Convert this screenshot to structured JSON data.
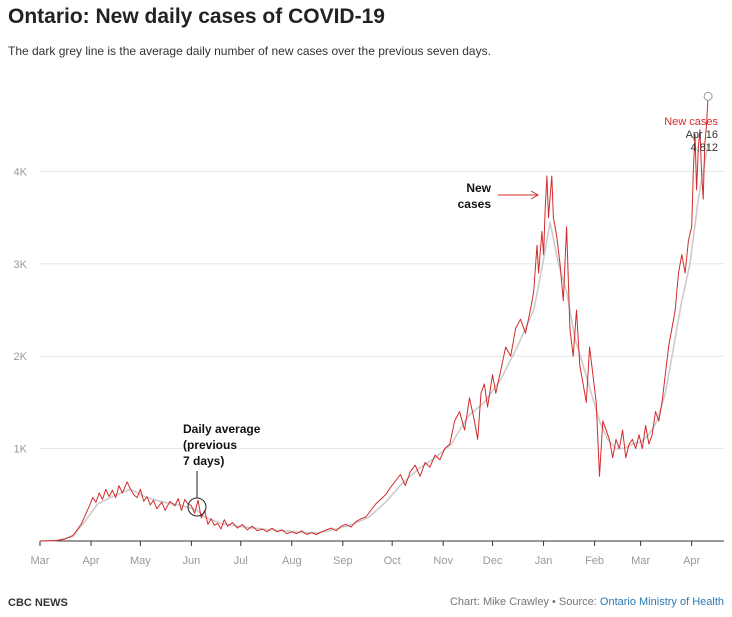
{
  "header": {
    "title": "Ontario: New daily cases of COVID-19",
    "subtitle": "The dark grey line is the average daily number of new cases over the previous seven days."
  },
  "footer": {
    "brand": "CBC NEWS",
    "credit": "Chart: Mike Crawley • Source: ",
    "source_link": "Ontario Ministry of Health"
  },
  "annotations": {
    "new_cases_line1": "New",
    "new_cases_line2": "cases",
    "avg_line1": "Daily average",
    "avg_line2": "(previous",
    "avg_line3": "7 days)",
    "last_series": "New cases",
    "last_date": "Apr 16",
    "last_value": "4,812"
  },
  "colors": {
    "daily": "#d32b2b",
    "average": "#cccccc",
    "grid": "#e6e6e6",
    "axis": "#333333"
  },
  "chart_data": {
    "type": "line",
    "title": "Ontario: New daily cases of COVID-19",
    "xlabel": "",
    "ylabel": "",
    "ylim": [
      0,
      5000
    ],
    "yticks": [
      1000,
      2000,
      3000,
      4000
    ],
    "ytick_labels": [
      "1K",
      "2K",
      "3K",
      "4K"
    ],
    "xticks": [
      "Mar",
      "Apr",
      "May",
      "Jun",
      "Jul",
      "Aug",
      "Sep",
      "Oct",
      "Nov",
      "Dec",
      "Jan",
      "Feb",
      "Mar",
      "Apr"
    ],
    "x_unit": "days since Mar 1, 2020",
    "xtick_days": [
      0,
      31,
      61,
      92,
      122,
      153,
      184,
      214,
      245,
      275,
      306,
      337,
      365,
      396
    ],
    "series": [
      {
        "name": "New cases",
        "points": [
          [
            0,
            0
          ],
          [
            10,
            5
          ],
          [
            15,
            20
          ],
          [
            20,
            60
          ],
          [
            25,
            180
          ],
          [
            28,
            300
          ],
          [
            30,
            380
          ],
          [
            32,
            470
          ],
          [
            34,
            420
          ],
          [
            36,
            520
          ],
          [
            38,
            450
          ],
          [
            40,
            560
          ],
          [
            42,
            480
          ],
          [
            44,
            550
          ],
          [
            46,
            470
          ],
          [
            48,
            600
          ],
          [
            50,
            520
          ],
          [
            53,
            640
          ],
          [
            55,
            560
          ],
          [
            57,
            500
          ],
          [
            59,
            470
          ],
          [
            61,
            560
          ],
          [
            63,
            430
          ],
          [
            65,
            480
          ],
          [
            67,
            390
          ],
          [
            69,
            440
          ],
          [
            71,
            350
          ],
          [
            74,
            420
          ],
          [
            76,
            330
          ],
          [
            79,
            430
          ],
          [
            82,
            380
          ],
          [
            84,
            460
          ],
          [
            86,
            330
          ],
          [
            88,
            450
          ],
          [
            90,
            400
          ],
          [
            92,
            380
          ],
          [
            94,
            300
          ],
          [
            96,
            440
          ],
          [
            98,
            250
          ],
          [
            100,
            330
          ],
          [
            102,
            180
          ],
          [
            104,
            240
          ],
          [
            106,
            170
          ],
          [
            108,
            190
          ],
          [
            110,
            130
          ],
          [
            112,
            230
          ],
          [
            114,
            160
          ],
          [
            117,
            200
          ],
          [
            120,
            140
          ],
          [
            123,
            180
          ],
          [
            126,
            120
          ],
          [
            129,
            160
          ],
          [
            132,
            110
          ],
          [
            135,
            130
          ],
          [
            138,
            100
          ],
          [
            141,
            140
          ],
          [
            144,
            100
          ],
          [
            147,
            120
          ],
          [
            150,
            80
          ],
          [
            153,
            100
          ],
          [
            156,
            80
          ],
          [
            159,
            110
          ],
          [
            162,
            70
          ],
          [
            165,
            90
          ],
          [
            168,
            70
          ],
          [
            171,
            100
          ],
          [
            174,
            120
          ],
          [
            177,
            140
          ],
          [
            180,
            110
          ],
          [
            183,
            160
          ],
          [
            186,
            180
          ],
          [
            189,
            150
          ],
          [
            192,
            210
          ],
          [
            195,
            240
          ],
          [
            198,
            260
          ],
          [
            201,
            330
          ],
          [
            204,
            400
          ],
          [
            207,
            450
          ],
          [
            210,
            500
          ],
          [
            213,
            580
          ],
          [
            216,
            650
          ],
          [
            219,
            720
          ],
          [
            222,
            600
          ],
          [
            225,
            750
          ],
          [
            228,
            820
          ],
          [
            231,
            700
          ],
          [
            234,
            850
          ],
          [
            237,
            800
          ],
          [
            240,
            930
          ],
          [
            243,
            880
          ],
          [
            246,
            1000
          ],
          [
            249,
            1050
          ],
          [
            252,
            1300
          ],
          [
            255,
            1400
          ],
          [
            258,
            1200
          ],
          [
            261,
            1550
          ],
          [
            264,
            1300
          ],
          [
            266,
            1100
          ],
          [
            268,
            1600
          ],
          [
            270,
            1700
          ],
          [
            272,
            1450
          ],
          [
            275,
            1800
          ],
          [
            277,
            1600
          ],
          [
            280,
            1850
          ],
          [
            283,
            2100
          ],
          [
            286,
            2000
          ],
          [
            289,
            2300
          ],
          [
            292,
            2400
          ],
          [
            295,
            2250
          ],
          [
            298,
            2500
          ],
          [
            300,
            2700
          ],
          [
            302,
            3200
          ],
          [
            303,
            2900
          ],
          [
            305,
            3350
          ],
          [
            306,
            3100
          ],
          [
            307,
            3600
          ],
          [
            308,
            3950
          ],
          [
            309,
            3500
          ],
          [
            311,
            3950
          ],
          [
            312,
            3500
          ],
          [
            314,
            3300
          ],
          [
            316,
            3000
          ],
          [
            318,
            2600
          ],
          [
            320,
            3400
          ],
          [
            322,
            2300
          ],
          [
            324,
            2000
          ],
          [
            326,
            2500
          ],
          [
            328,
            1900
          ],
          [
            330,
            1700
          ],
          [
            332,
            1500
          ],
          [
            334,
            2100
          ],
          [
            336,
            1800
          ],
          [
            338,
            1500
          ],
          [
            340,
            700
          ],
          [
            342,
            1300
          ],
          [
            344,
            1200
          ],
          [
            346,
            1100
          ],
          [
            348,
            900
          ],
          [
            350,
            1100
          ],
          [
            352,
            1000
          ],
          [
            354,
            1200
          ],
          [
            356,
            900
          ],
          [
            358,
            1050
          ],
          [
            360,
            1100
          ],
          [
            362,
            1000
          ],
          [
            364,
            1150
          ],
          [
            366,
            1000
          ],
          [
            368,
            1250
          ],
          [
            370,
            1050
          ],
          [
            372,
            1150
          ],
          [
            374,
            1400
          ],
          [
            376,
            1300
          ],
          [
            378,
            1500
          ],
          [
            380,
            1800
          ],
          [
            382,
            2100
          ],
          [
            384,
            2300
          ],
          [
            386,
            2500
          ],
          [
            388,
            2900
          ],
          [
            390,
            3100
          ],
          [
            392,
            2900
          ],
          [
            394,
            3250
          ],
          [
            396,
            3400
          ],
          [
            397,
            4000
          ],
          [
            398,
            4400
          ],
          [
            399,
            3800
          ],
          [
            400,
            4250
          ],
          [
            401,
            4450
          ],
          [
            402,
            4000
          ],
          [
            403,
            3700
          ],
          [
            404,
            4300
          ],
          [
            405,
            4500
          ],
          [
            406,
            4812
          ]
        ]
      },
      {
        "name": "7-day average",
        "points": [
          [
            0,
            0
          ],
          [
            10,
            5
          ],
          [
            20,
            50
          ],
          [
            28,
            230
          ],
          [
            35,
            400
          ],
          [
            45,
            490
          ],
          [
            55,
            560
          ],
          [
            65,
            470
          ],
          [
            75,
            420
          ],
          [
            85,
            390
          ],
          [
            95,
            340
          ],
          [
            100,
            260
          ],
          [
            110,
            190
          ],
          [
            120,
            160
          ],
          [
            130,
            140
          ],
          [
            140,
            120
          ],
          [
            150,
            110
          ],
          [
            160,
            90
          ],
          [
            170,
            90
          ],
          [
            180,
            130
          ],
          [
            190,
            180
          ],
          [
            200,
            260
          ],
          [
            210,
            420
          ],
          [
            220,
            620
          ],
          [
            230,
            780
          ],
          [
            240,
            900
          ],
          [
            250,
            1050
          ],
          [
            260,
            1350
          ],
          [
            270,
            1500
          ],
          [
            280,
            1750
          ],
          [
            290,
            2100
          ],
          [
            300,
            2500
          ],
          [
            305,
            2950
          ],
          [
            310,
            3450
          ],
          [
            315,
            3000
          ],
          [
            320,
            2700
          ],
          [
            325,
            2200
          ],
          [
            330,
            1900
          ],
          [
            335,
            1600
          ],
          [
            340,
            1300
          ],
          [
            345,
            1100
          ],
          [
            350,
            1000
          ],
          [
            355,
            1000
          ],
          [
            360,
            1050
          ],
          [
            365,
            1070
          ],
          [
            370,
            1150
          ],
          [
            375,
            1300
          ],
          [
            380,
            1600
          ],
          [
            385,
            2100
          ],
          [
            390,
            2600
          ],
          [
            395,
            3000
          ],
          [
            400,
            3700
          ],
          [
            403,
            4000
          ],
          [
            406,
            4300
          ]
        ]
      }
    ],
    "last_point": {
      "date": "Apr 16",
      "value": 4812
    }
  }
}
